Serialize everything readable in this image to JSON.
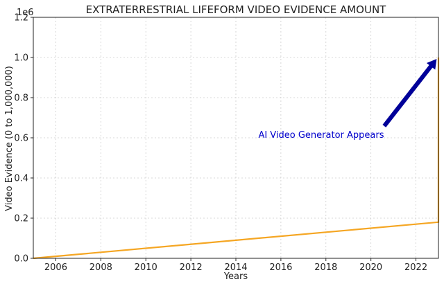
{
  "chart_data": {
    "type": "line",
    "title": "EXTRATERRESTRIAL LIFEFORM VIDEO EVIDENCE AMOUNT",
    "xlabel": "Years",
    "ylabel": "Video Evidence (0 to 1,000,000)",
    "xlim": [
      2005,
      2023
    ],
    "ylim": [
      0,
      1200000
    ],
    "xticks": [
      2006,
      2008,
      2010,
      2012,
      2014,
      2016,
      2018,
      2020,
      2022
    ],
    "yticks": [
      0,
      200000,
      400000,
      600000,
      800000,
      1000000,
      1200000
    ],
    "ytick_labels": [
      "0.0",
      "0.2",
      "0.4",
      "0.6",
      "0.8",
      "1.0",
      "1.2"
    ],
    "y_offset_label": "1e6",
    "grid": true,
    "series": [
      {
        "name": "Video Evidence",
        "color": "#f5a623",
        "x": [
          2005,
          2023,
          2023
        ],
        "y": [
          0,
          180000,
          1000000
        ]
      }
    ],
    "annotation": {
      "text": "AI Video Generator Appears",
      "color": "#0000cc",
      "arrow_color": "#000099",
      "text_x": 2015,
      "text_y": 600000,
      "arrow_from_x": 2020.6,
      "arrow_from_y": 660000,
      "arrow_to_x": 2022.9,
      "arrow_to_y": 990000
    }
  }
}
